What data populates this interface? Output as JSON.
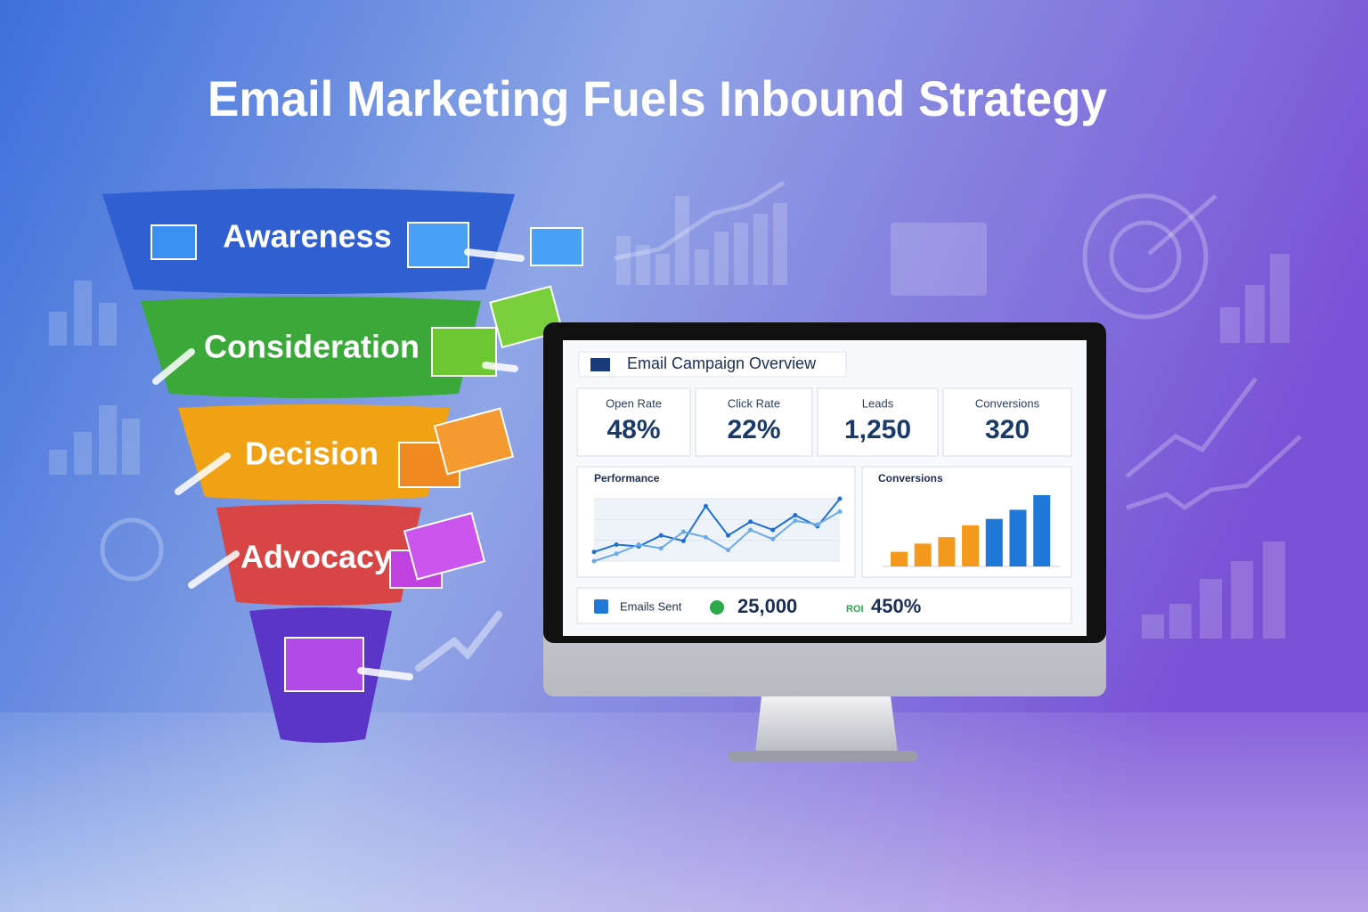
{
  "title": "Email Marketing Fuels Inbound Strategy",
  "funnel": {
    "stages": [
      "Awareness",
      "Consideration",
      "Decision",
      "Advocacy"
    ]
  },
  "dashboard": {
    "title": "Email Campaign Overview",
    "metrics": [
      {
        "label": "Open Rate",
        "value": "48%"
      },
      {
        "label": "Click Rate",
        "value": "22%"
      },
      {
        "label": "Leads",
        "value": "1,250"
      },
      {
        "label": "Conversions",
        "value": "320"
      }
    ],
    "performance": {
      "title": "Performance",
      "type": "line",
      "series": [
        {
          "color": "#1f6fd0",
          "values": [
            22,
            30,
            28,
            40,
            34,
            72,
            40,
            55,
            46,
            62,
            50,
            80
          ]
        },
        {
          "color": "#6aaae8",
          "values": [
            12,
            20,
            30,
            26,
            44,
            38,
            24,
            46,
            36,
            56,
            52,
            66
          ]
        }
      ]
    },
    "conversions": {
      "title": "Conversions",
      "type": "bar",
      "values": [
        16,
        25,
        32,
        45,
        52,
        62,
        78
      ],
      "colors": [
        "#f39a1e",
        "#f39a1e",
        "#f39a1e",
        "#f39a1e",
        "#1f78d8",
        "#1f78d8",
        "#1f78d8"
      ]
    },
    "footer": {
      "emails_sent_label": "Emails Sent",
      "emails_sent_value": "25,000",
      "roi_label": "ROI",
      "roi_value": "450%"
    }
  }
}
